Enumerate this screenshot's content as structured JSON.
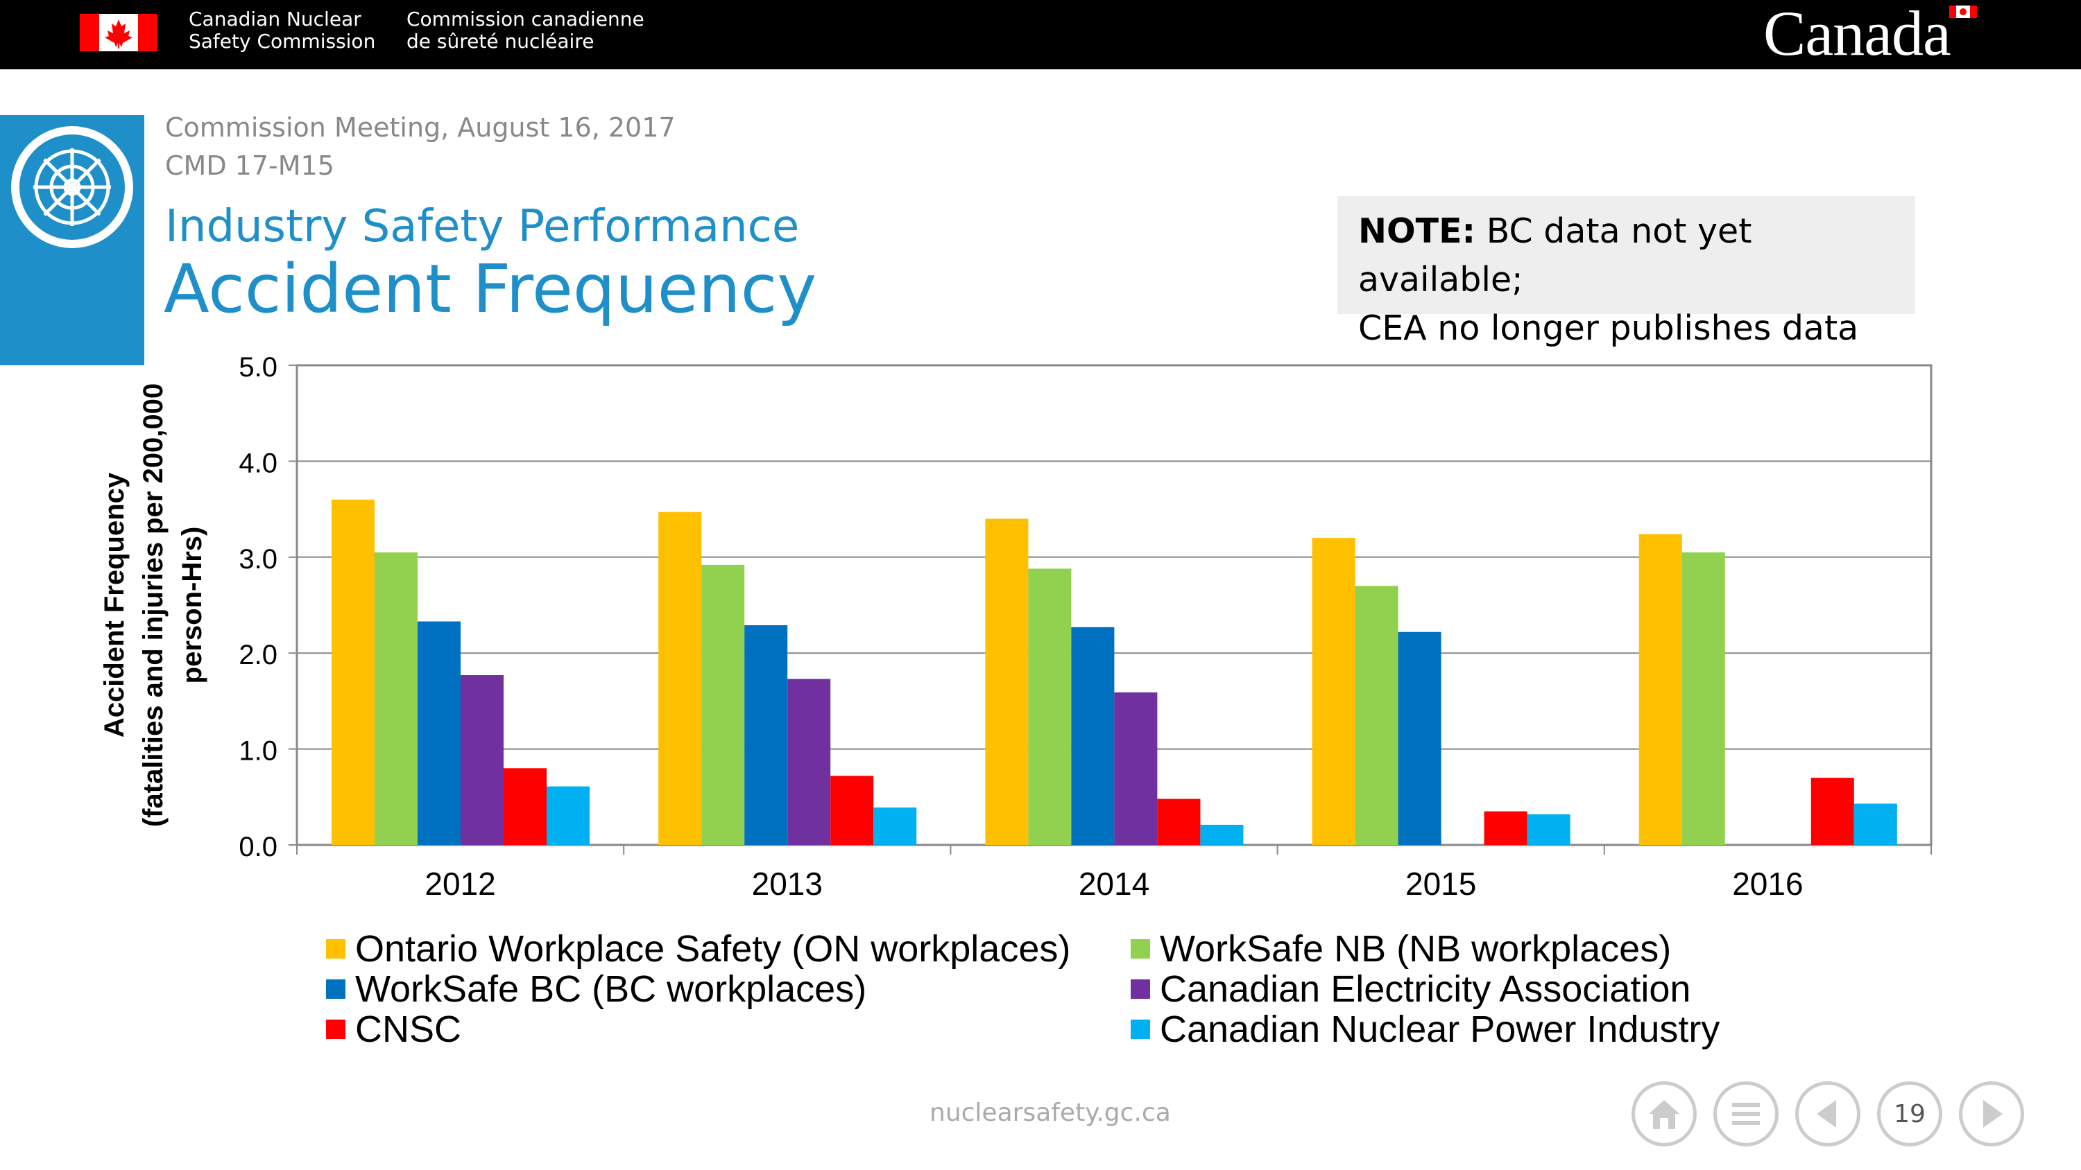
{
  "header": {
    "dept_en": [
      "Canadian Nuclear",
      "Safety Commission"
    ],
    "dept_fr": [
      "Commission canadienne",
      "de sûreté nucléaire"
    ],
    "wordmark": "Canada"
  },
  "meeting": {
    "line1": "Commission Meeting, August 16, 2017",
    "line2": "CMD 17-M15"
  },
  "subtitle": "Industry Safety Performance",
  "title": "Accident Frequency",
  "note": {
    "label": "NOTE:",
    "line1": " BC data not yet available;",
    "line2": "CEA no longer publishes data"
  },
  "chart_data": {
    "type": "bar",
    "categories": [
      "2012",
      "2013",
      "2014",
      "2015",
      "2016"
    ],
    "ylabel": [
      "Accident Frequency",
      "(fatalities and injuries per 200,000",
      "person-Hrs)"
    ],
    "ylim": [
      0,
      5
    ],
    "yticks": [
      "0.0",
      "1.0",
      "2.0",
      "3.0",
      "4.0",
      "5.0"
    ],
    "grid": true,
    "legend_position": "bottom",
    "series": [
      {
        "name": "Ontario Workplace Safety (ON workplaces)",
        "color": "#ffc000",
        "values": [
          3.6,
          3.47,
          3.4,
          3.2,
          3.24
        ]
      },
      {
        "name": "WorkSafe NB (NB workplaces)",
        "color": "#92d050",
        "values": [
          3.05,
          2.92,
          2.88,
          2.7,
          3.05
        ]
      },
      {
        "name": "WorkSafe BC (BC workplaces)",
        "color": "#0070c0",
        "values": [
          2.33,
          2.29,
          2.27,
          2.22,
          null
        ]
      },
      {
        "name": "Canadian Electricity Association",
        "color": "#7030a0",
        "values": [
          1.77,
          1.73,
          1.59,
          null,
          null
        ]
      },
      {
        "name": "CNSC",
        "color": "#ff0000",
        "values": [
          0.8,
          0.72,
          0.48,
          0.35,
          0.7
        ]
      },
      {
        "name": "Canadian Nuclear Power Industry",
        "color": "#00b0f0",
        "values": [
          0.61,
          0.39,
          0.21,
          0.32,
          0.43
        ]
      }
    ]
  },
  "legend_order": [
    0,
    1,
    2,
    3,
    4,
    5
  ],
  "footer": {
    "url": "nuclearsafety.gc.ca",
    "page": "19"
  },
  "icons": [
    "home-icon",
    "menu-icon",
    "previous-icon",
    "next-icon"
  ]
}
